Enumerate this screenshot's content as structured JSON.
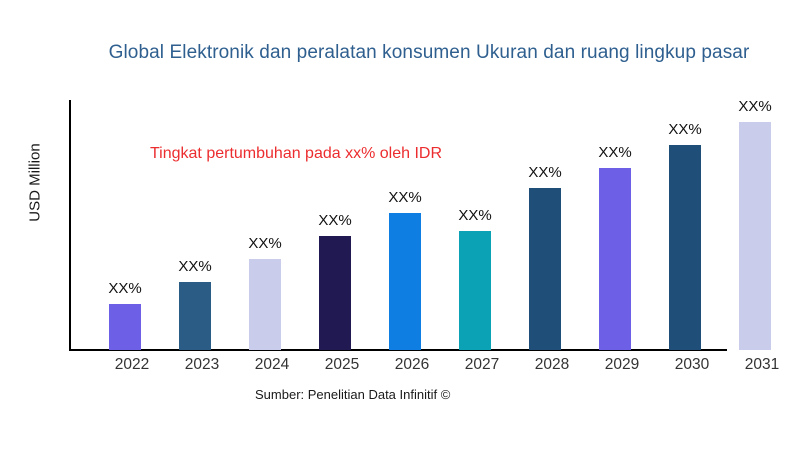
{
  "title": "Global Elektronik dan peralatan konsumen Ukuran dan ruang lingkup pasar",
  "annotation": "Tingkat pertumbuhan pada xx% oleh IDR",
  "y_axis_label": "USD Million",
  "source": "Sumber: Penelitian Data Infinitif ©",
  "colors": {
    "title": "#2E5F8F",
    "annotation": "#EC2D2F",
    "axis": "#000000",
    "labels": "#111111"
  },
  "chart_data": {
    "type": "bar",
    "title": "Global Elektronik dan peralatan konsumen Ukuran dan ruang lingkup pasar",
    "xlabel": "",
    "ylabel": "USD Million",
    "categories": [
      "2022",
      "2023",
      "2024",
      "2025",
      "2026",
      "2027",
      "2028",
      "2029",
      "2030",
      "2031"
    ],
    "values_pct_of_tallest": [
      20,
      30,
      40,
      50,
      60,
      52,
      71,
      80,
      90,
      100
    ],
    "bar_value_labels": [
      "XX%",
      "XX%",
      "XX%",
      "XX%",
      "XX%",
      "XX%",
      "XX%",
      "XX%",
      "XX%",
      "XX%"
    ],
    "bar_colors": [
      "#6D5FE6",
      "#2B5C85",
      "#CACCEC",
      "#211A52",
      "#0F7EE3",
      "#0AA2B4",
      "#1F4E79",
      "#6D5FE6",
      "#1F4E79",
      "#CACCEC"
    ],
    "grid": false,
    "legend": "none",
    "annotation": "Tingkat pertumbuhan pada xx% oleh IDR",
    "source": "Sumber: Penelitian Data Infinitif ©"
  }
}
